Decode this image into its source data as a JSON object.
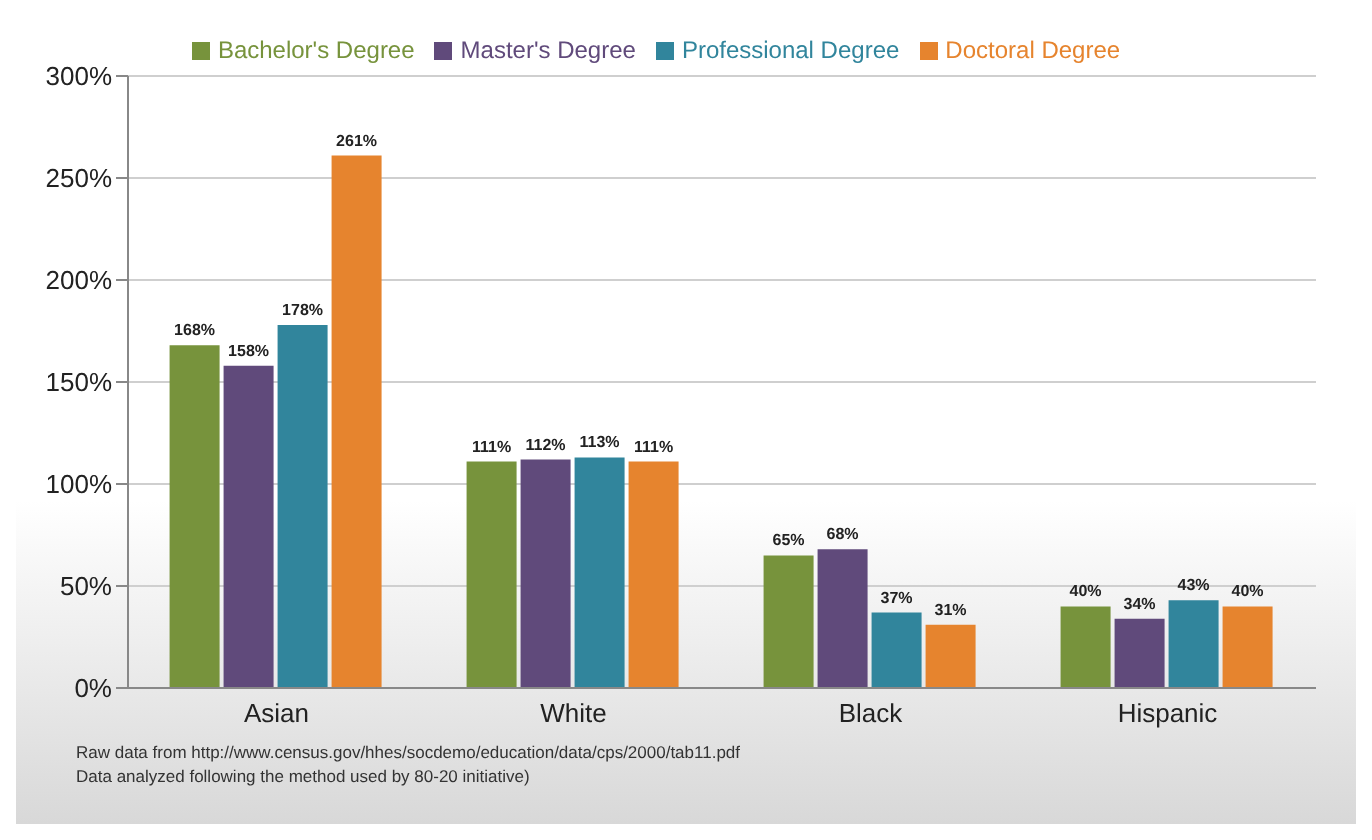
{
  "chart_data": {
    "type": "bar",
    "categories": [
      "Asian",
      "White",
      "Black",
      "Hispanic"
    ],
    "series": [
      {
        "name": "Bachelor's Degree",
        "color": "#77933c",
        "values": [
          168,
          111,
          65,
          40
        ],
        "value_labels": [
          "168%",
          "111%",
          "65%",
          "40%"
        ]
      },
      {
        "name": "Master's Degree",
        "color": "#604a7b",
        "values": [
          158,
          112,
          68,
          34
        ],
        "value_labels": [
          "158%",
          "112%",
          "68%",
          "34%"
        ]
      },
      {
        "name": "Professional Degree",
        "color": "#31859c",
        "values": [
          178,
          113,
          37,
          43
        ],
        "value_labels": [
          "178%",
          "113%",
          "37%",
          "43%"
        ]
      },
      {
        "name": "Doctoral Degree",
        "color": "#e6842e",
        "values": [
          261,
          111,
          31,
          40
        ],
        "value_labels": [
          "261%",
          "111%",
          "31%",
          "40%"
        ]
      }
    ],
    "ylim": [
      0,
      300
    ],
    "yticks": [
      {
        "value": 0,
        "label": "0%"
      },
      {
        "value": 50,
        "label": "50%"
      },
      {
        "value": 100,
        "label": "100%"
      },
      {
        "value": 150,
        "label": "150%"
      },
      {
        "value": 200,
        "label": "200%"
      },
      {
        "value": 250,
        "label": "250%"
      },
      {
        "value": 300,
        "label": "300%"
      }
    ],
    "grid": "y",
    "legend": "top",
    "annotations": [
      "Raw data from http://www.census.gov/hhes/socdemo/education/data/cps/2000/tab11.pdf",
      "Data analyzed following the method used by 80-20 initiative)"
    ]
  }
}
